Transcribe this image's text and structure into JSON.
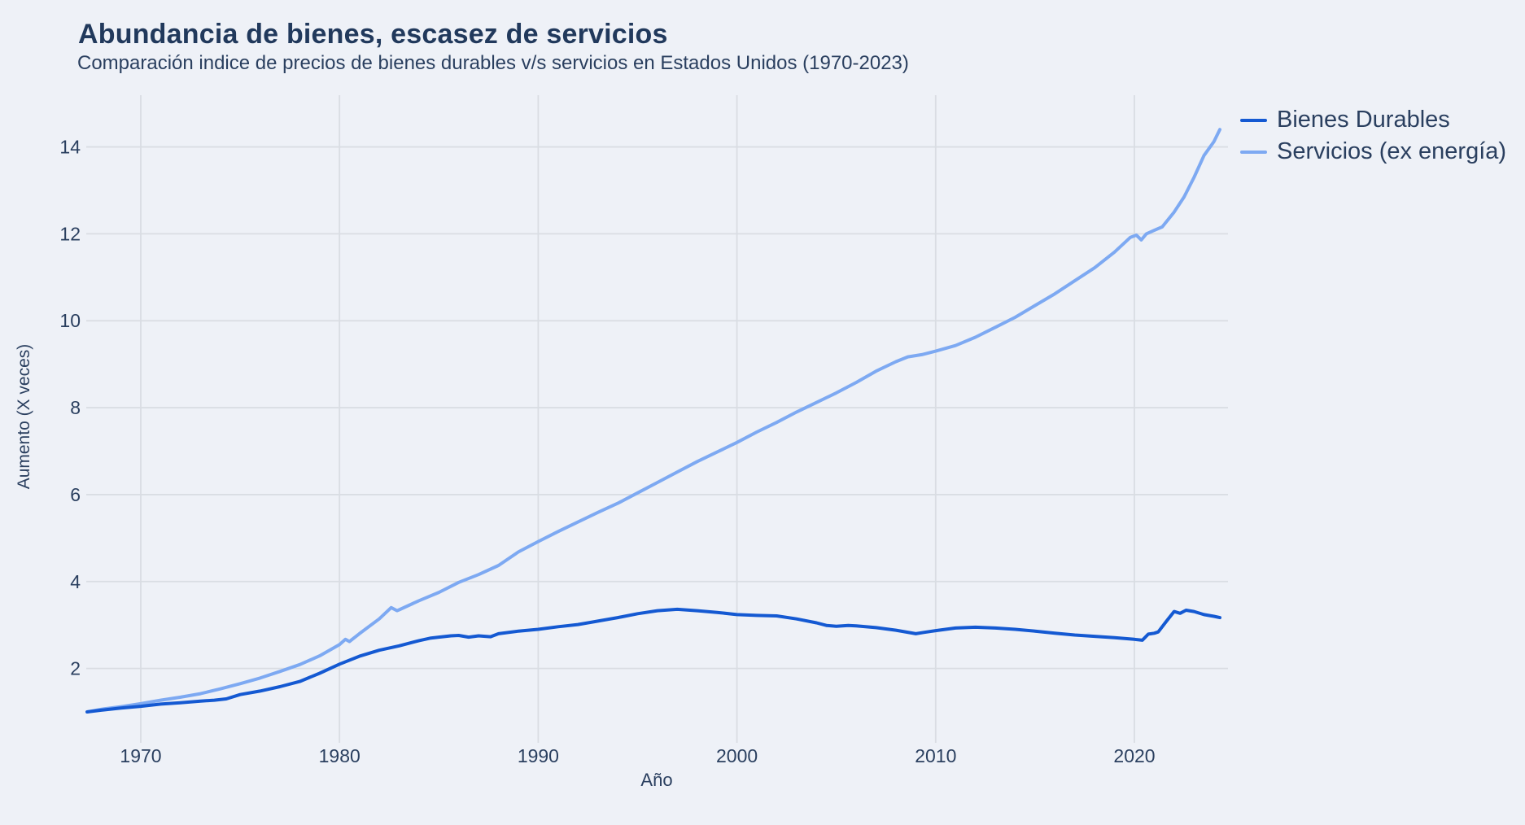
{
  "title": "Abundancia de bienes, escasez de servicios",
  "subtitle": "Comparación indice de precios de bienes durables v/s servicios en Estados Unidos (1970-2023)",
  "colors": {
    "background": "#eef1f7",
    "grid": "#d9dde3",
    "text": "#2a3f5f",
    "title_text": "#21395c",
    "durables_line": "#1459d2",
    "services_line": "#7da9f2"
  },
  "legend": {
    "items": [
      {
        "label": "Bienes Durables",
        "color": "#1459d2"
      },
      {
        "label": "Servicios (ex energía)",
        "color": "#7da9f2"
      }
    ]
  },
  "axes": {
    "x_label": "Año",
    "y_label": "Aumento (X veces)",
    "x_ticks": [
      1970,
      1980,
      1990,
      2000,
      2010,
      2020
    ],
    "y_ticks": [
      2,
      4,
      6,
      8,
      10,
      12,
      14
    ]
  },
  "chart_data": {
    "type": "line",
    "title": "Abundancia de bienes, escasez de servicios",
    "subtitle": "Comparación indice de precios de bienes durables v/s servicios en Estados Unidos (1970-2023)",
    "xlabel": "Año",
    "ylabel": "Aumento (X veces)",
    "x_range": [
      1967.3,
      2024.8
    ],
    "y_range": [
      0.3,
      15.2
    ],
    "grid": true,
    "legend_position": "top-right",
    "series": [
      {
        "name": "Bienes Durables",
        "color": "#1459d2",
        "points": [
          [
            1967.3,
            1.0
          ],
          [
            1968,
            1.04
          ],
          [
            1969,
            1.09
          ],
          [
            1970,
            1.13
          ],
          [
            1971,
            1.18
          ],
          [
            1972,
            1.21
          ],
          [
            1973,
            1.25
          ],
          [
            1973.7,
            1.27
          ],
          [
            1974.3,
            1.3
          ],
          [
            1975,
            1.4
          ],
          [
            1976,
            1.48
          ],
          [
            1977,
            1.58
          ],
          [
            1978,
            1.7
          ],
          [
            1979,
            1.89
          ],
          [
            1980,
            2.1
          ],
          [
            1981,
            2.28
          ],
          [
            1982,
            2.42
          ],
          [
            1983,
            2.52
          ],
          [
            1984,
            2.64
          ],
          [
            1984.6,
            2.7
          ],
          [
            1985,
            2.72
          ],
          [
            1985.6,
            2.75
          ],
          [
            1986,
            2.76
          ],
          [
            1986.5,
            2.72
          ],
          [
            1987,
            2.75
          ],
          [
            1987.6,
            2.73
          ],
          [
            1988,
            2.8
          ],
          [
            1989,
            2.86
          ],
          [
            1990,
            2.9
          ],
          [
            1991,
            2.96
          ],
          [
            1992,
            3.01
          ],
          [
            1993,
            3.09
          ],
          [
            1994,
            3.17
          ],
          [
            1995,
            3.26
          ],
          [
            1996,
            3.33
          ],
          [
            1997,
            3.36
          ],
          [
            1998,
            3.33
          ],
          [
            1999,
            3.29
          ],
          [
            2000,
            3.24
          ],
          [
            2001,
            3.22
          ],
          [
            2002,
            3.21
          ],
          [
            2003,
            3.14
          ],
          [
            2004,
            3.05
          ],
          [
            2004.5,
            2.99
          ],
          [
            2005,
            2.97
          ],
          [
            2005.6,
            2.99
          ],
          [
            2006,
            2.98
          ],
          [
            2007,
            2.94
          ],
          [
            2008,
            2.88
          ],
          [
            2009,
            2.8
          ],
          [
            2009.4,
            2.83
          ],
          [
            2010,
            2.87
          ],
          [
            2011,
            2.93
          ],
          [
            2012,
            2.95
          ],
          [
            2013,
            2.93
          ],
          [
            2014,
            2.9
          ],
          [
            2015,
            2.86
          ],
          [
            2016,
            2.81
          ],
          [
            2017,
            2.77
          ],
          [
            2018,
            2.74
          ],
          [
            2019,
            2.71
          ],
          [
            2020,
            2.67
          ],
          [
            2020.4,
            2.65
          ],
          [
            2020.7,
            2.79
          ],
          [
            2021,
            2.81
          ],
          [
            2021.2,
            2.84
          ],
          [
            2021.6,
            3.08
          ],
          [
            2022,
            3.31
          ],
          [
            2022.3,
            3.27
          ],
          [
            2022.6,
            3.34
          ],
          [
            2023,
            3.31
          ],
          [
            2023.5,
            3.24
          ],
          [
            2024,
            3.2
          ],
          [
            2024.3,
            3.17
          ]
        ]
      },
      {
        "name": "Servicios (ex energía)",
        "color": "#7da9f2",
        "points": [
          [
            1967.3,
            1.0
          ],
          [
            1968,
            1.06
          ],
          [
            1969,
            1.12
          ],
          [
            1970,
            1.19
          ],
          [
            1971,
            1.27
          ],
          [
            1972,
            1.34
          ],
          [
            1973,
            1.42
          ],
          [
            1974,
            1.53
          ],
          [
            1975,
            1.65
          ],
          [
            1976,
            1.78
          ],
          [
            1977,
            1.93
          ],
          [
            1978,
            2.09
          ],
          [
            1979,
            2.29
          ],
          [
            1980,
            2.55
          ],
          [
            1980.3,
            2.67
          ],
          [
            1980.5,
            2.62
          ],
          [
            1981,
            2.8
          ],
          [
            1982,
            3.14
          ],
          [
            1982.6,
            3.4
          ],
          [
            1982.9,
            3.33
          ],
          [
            1983,
            3.35
          ],
          [
            1984,
            3.56
          ],
          [
            1985,
            3.75
          ],
          [
            1986,
            3.98
          ],
          [
            1987,
            4.16
          ],
          [
            1988,
            4.37
          ],
          [
            1989,
            4.68
          ],
          [
            1990,
            4.92
          ],
          [
            1991,
            5.15
          ],
          [
            1992,
            5.37
          ],
          [
            1993,
            5.59
          ],
          [
            1994,
            5.8
          ],
          [
            1995,
            6.04
          ],
          [
            1996,
            6.28
          ],
          [
            1997,
            6.52
          ],
          [
            1998,
            6.76
          ],
          [
            1999,
            6.98
          ],
          [
            2000,
            7.2
          ],
          [
            2001,
            7.44
          ],
          [
            2002,
            7.66
          ],
          [
            2003,
            7.9
          ],
          [
            2004,
            8.12
          ],
          [
            2005,
            8.34
          ],
          [
            2006,
            8.58
          ],
          [
            2007,
            8.84
          ],
          [
            2008,
            9.06
          ],
          [
            2008.6,
            9.17
          ],
          [
            2009.3,
            9.22
          ],
          [
            2010,
            9.3
          ],
          [
            2011,
            9.43
          ],
          [
            2012,
            9.62
          ],
          [
            2013,
            9.85
          ],
          [
            2014,
            10.08
          ],
          [
            2015,
            10.35
          ],
          [
            2016,
            10.62
          ],
          [
            2017,
            10.92
          ],
          [
            2018,
            11.22
          ],
          [
            2019,
            11.58
          ],
          [
            2019.8,
            11.92
          ],
          [
            2020.1,
            11.97
          ],
          [
            2020.35,
            11.86
          ],
          [
            2020.6,
            12.0
          ],
          [
            2021,
            12.08
          ],
          [
            2021.4,
            12.16
          ],
          [
            2022,
            12.5
          ],
          [
            2022.5,
            12.85
          ],
          [
            2023,
            13.3
          ],
          [
            2023.5,
            13.8
          ],
          [
            2024,
            14.12
          ],
          [
            2024.3,
            14.4
          ]
        ]
      }
    ]
  }
}
